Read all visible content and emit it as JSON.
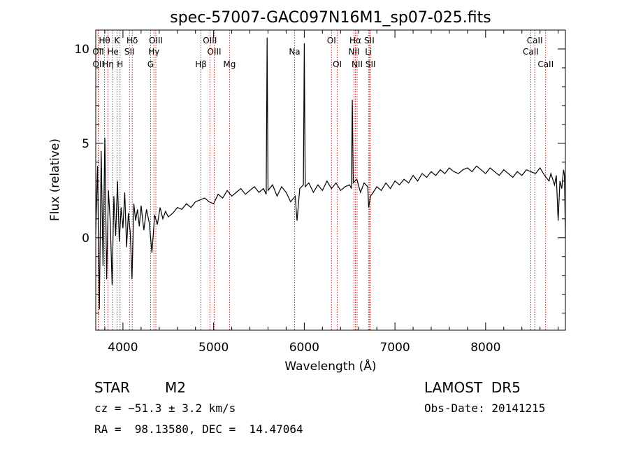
{
  "chart_data": {
    "type": "line",
    "title": "spec-57007-GAC097N16M1_sp07-025.fits",
    "xlabel": "Wavelength (Å)",
    "ylabel": "Flux (relative)",
    "xlim": [
      3700,
      8880
    ],
    "ylim": [
      -4.9,
      11.0
    ],
    "x_ticks": [
      4000,
      5000,
      6000,
      7000,
      8000
    ],
    "y_ticks": [
      0,
      5,
      10
    ],
    "grid": false,
    "line_color": "#000000",
    "marker_color": "#aa0000",
    "series": [
      {
        "x": [
          3700,
          3720,
          3740,
          3760,
          3780,
          3800,
          3820,
          3840,
          3860,
          3880,
          3900,
          3920,
          3940,
          3960,
          3980,
          4000,
          4020,
          4040,
          4060,
          4080,
          4100,
          4120,
          4140,
          4160,
          4180,
          4200,
          4230,
          4260,
          4290,
          4320,
          4350,
          4380,
          4410,
          4440,
          4470,
          4500,
          4550,
          4600,
          4650,
          4700,
          4750,
          4800,
          4850,
          4900,
          4950,
          5000,
          5050,
          5100,
          5150,
          5200,
          5250,
          5300,
          5350,
          5400,
          5450,
          5500,
          5550,
          5580,
          5590,
          5600,
          5650,
          5700,
          5750,
          5800,
          5850,
          5900,
          5920,
          5950,
          5990,
          6000,
          6010,
          6050,
          6100,
          6150,
          6200,
          6250,
          6300,
          6350,
          6400,
          6450,
          6500,
          6520,
          6530,
          6540,
          6580,
          6620,
          6660,
          6700,
          6710,
          6730,
          6760,
          6800,
          6850,
          6900,
          6950,
          7000,
          7050,
          7100,
          7150,
          7200,
          7250,
          7300,
          7350,
          7400,
          7450,
          7500,
          7550,
          7600,
          7650,
          7700,
          7750,
          7800,
          7850,
          7900,
          7950,
          8000,
          8050,
          8100,
          8150,
          8200,
          8250,
          8300,
          8350,
          8400,
          8450,
          8500,
          8550,
          8600,
          8650,
          8700,
          8720,
          8740,
          8760,
          8780,
          8800,
          8820,
          8840,
          8860,
          8870,
          8880
        ],
        "y": [
          0.2,
          3.8,
          -3.8,
          4.6,
          -1.5,
          5.3,
          -2.2,
          2.5,
          0.8,
          -2.5,
          2.2,
          0.1,
          3.0,
          -0.2,
          1.6,
          0.5,
          2.4,
          -0.5,
          1.3,
          0.3,
          -2.2,
          1.8,
          0.9,
          1.5,
          0.6,
          1.7,
          0.4,
          1.5,
          0.8,
          -0.8,
          1.2,
          0.7,
          1.6,
          1.0,
          1.4,
          1.1,
          1.3,
          1.6,
          1.5,
          1.8,
          1.6,
          1.9,
          2.0,
          2.1,
          1.9,
          1.8,
          2.3,
          2.1,
          2.5,
          2.2,
          2.4,
          2.6,
          2.3,
          2.5,
          2.7,
          2.4,
          2.6,
          2.3,
          10.6,
          2.5,
          2.8,
          2.2,
          2.7,
          2.4,
          1.9,
          2.2,
          0.9,
          2.6,
          2.8,
          10.3,
          2.7,
          2.9,
          2.4,
          2.8,
          2.5,
          3.0,
          2.6,
          2.9,
          2.5,
          2.7,
          2.8,
          2.6,
          7.3,
          2.9,
          3.1,
          2.4,
          2.9,
          2.7,
          1.6,
          2.2,
          2.4,
          2.7,
          2.5,
          2.9,
          2.6,
          3.0,
          2.8,
          3.1,
          2.9,
          3.3,
          3.0,
          3.4,
          3.2,
          3.5,
          3.3,
          3.6,
          3.4,
          3.7,
          3.5,
          3.4,
          3.6,
          3.7,
          3.5,
          3.8,
          3.6,
          3.4,
          3.7,
          3.5,
          3.3,
          3.6,
          3.4,
          3.2,
          3.5,
          3.3,
          3.6,
          3.5,
          3.4,
          3.7,
          3.3,
          3.0,
          3.4,
          3.1,
          2.8,
          3.3,
          0.9,
          3.0,
          2.6,
          3.6,
          3.3,
          0.0
        ]
      }
    ],
    "annotations": [
      {
        "label": "Hθ",
        "wl": 3797,
        "row": 1
      },
      {
        "label": "K",
        "wl": 3934,
        "row": 1
      },
      {
        "label": "Hδ",
        "wl": 4102,
        "row": 1
      },
      {
        "label": "OIII",
        "wl": 4363,
        "row": 1
      },
      {
        "label": "OIII",
        "wl": 4959,
        "row": 1
      },
      {
        "label": "OI",
        "wl": 6300,
        "row": 1
      },
      {
        "label": "Hα",
        "wl": 6563,
        "row": 1
      },
      {
        "label": "SII",
        "wl": 6717,
        "row": 1
      },
      {
        "label": "CaII",
        "wl": 8542,
        "row": 1
      },
      {
        "label": "OII",
        "wl": 3727,
        "row": 2
      },
      {
        "label": "He",
        "wl": 3889,
        "row": 2
      },
      {
        "label": "SII",
        "wl": 4072,
        "row": 2
      },
      {
        "label": "Hγ",
        "wl": 4341,
        "row": 2
      },
      {
        "label": "OIII",
        "wl": 5007,
        "row": 2
      },
      {
        "label": "NII",
        "wl": 6548,
        "row": 2
      },
      {
        "label": "Li",
        "wl": 6708,
        "row": 2
      },
      {
        "label": "CaII",
        "wl": 8498,
        "row": 2
      },
      {
        "label": "OII",
        "wl": 3729,
        "row": 3
      },
      {
        "label": "Hη",
        "wl": 3835,
        "row": 3
      },
      {
        "label": "H",
        "wl": 3968,
        "row": 3
      },
      {
        "label": "G",
        "wl": 4305,
        "row": 3
      },
      {
        "label": "Hβ",
        "wl": 4861,
        "row": 3
      },
      {
        "label": "Mg",
        "wl": 5175,
        "row": 3
      },
      {
        "label": "Na",
        "wl": 5893,
        "row": 2
      },
      {
        "label": "OI",
        "wl": 6364,
        "row": 3
      },
      {
        "label": "NII",
        "wl": 6583,
        "row": 3
      },
      {
        "label": "SII",
        "wl": 6731,
        "row": 3
      },
      {
        "label": "CaII",
        "wl": 8662,
        "row": 3
      }
    ]
  },
  "info": {
    "object_class": "STAR",
    "subclass": "M2",
    "survey": "LAMOST  DR5",
    "cz": "cz = −51.3 ± 3.2 km/s",
    "obs_date": "Obs-Date: 20141215",
    "coords": "RA =  98.13580, DEC =  14.47064"
  }
}
